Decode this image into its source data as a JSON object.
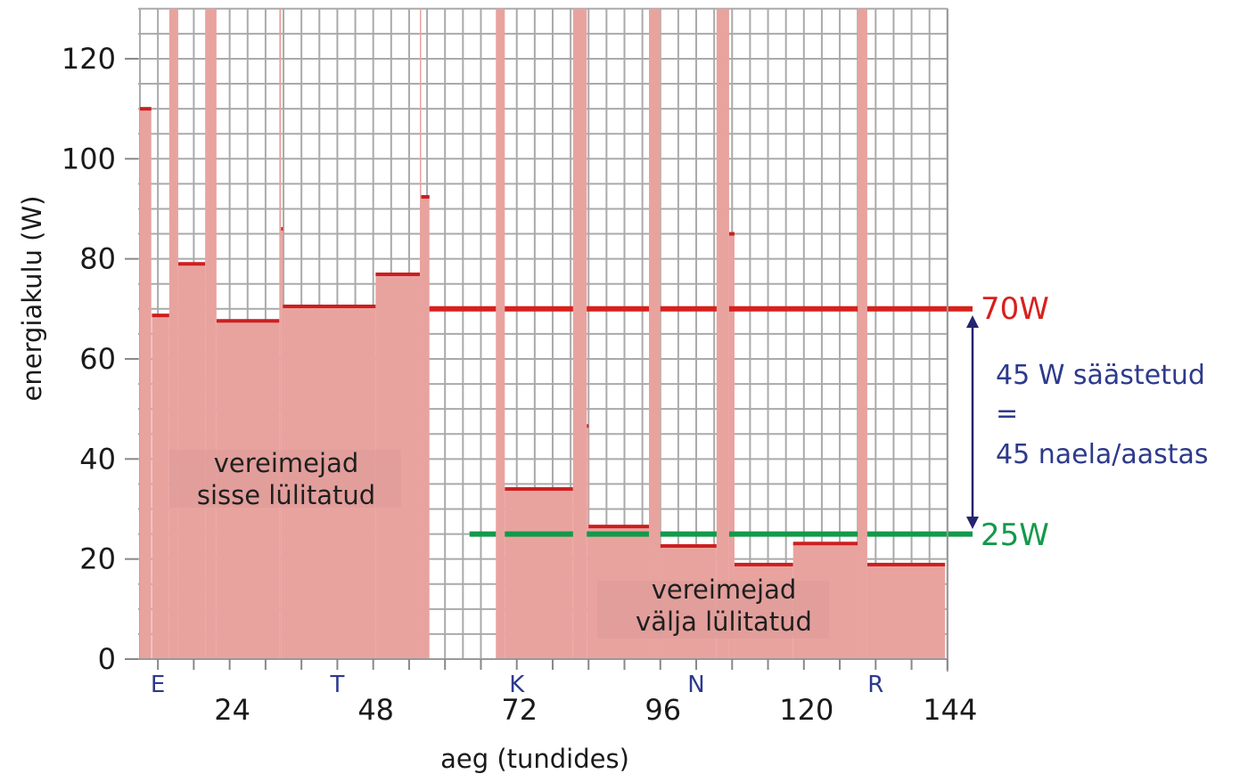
{
  "chart_data": {
    "type": "area",
    "xlabel": "aeg (tundides)",
    "ylabel": "energiakulu (W)",
    "xlim": [
      9,
      144
    ],
    "ylim": [
      0,
      130
    ],
    "x_ticks": [
      24,
      48,
      72,
      96,
      120,
      144
    ],
    "y_ticks": [
      0,
      20,
      40,
      60,
      80,
      100,
      120
    ],
    "grid": true,
    "day_labels": [
      {
        "label": "E",
        "x": 12
      },
      {
        "label": "T",
        "x": 42
      },
      {
        "label": "K",
        "x": 72
      },
      {
        "label": "N",
        "x": 102
      },
      {
        "label": "R",
        "x": 132
      }
    ],
    "series": [
      {
        "note": "step power consumption; null value = spike exceeding the axis top",
        "segments": [
          [
            9.0,
            10.9,
            110
          ],
          [
            11.0,
            13.9,
            68.7
          ],
          [
            13.9,
            15.4,
            null
          ],
          [
            15.4,
            19.9,
            79
          ],
          [
            19.9,
            21.8,
            null
          ],
          [
            21.8,
            32.3,
            67.6
          ],
          [
            32.3,
            32.6,
            null
          ],
          [
            32.6,
            32.9,
            86
          ],
          [
            32.9,
            48.4,
            70.5
          ],
          [
            48.4,
            55.8,
            76.9
          ],
          [
            55.8,
            56.0,
            null
          ],
          [
            56.0,
            57.4,
            92.4
          ],
          [
            68.5,
            70.0,
            null
          ],
          [
            70.0,
            81.4,
            34
          ],
          [
            81.4,
            83.7,
            null
          ],
          [
            83.7,
            84.0,
            46.6
          ],
          [
            84.0,
            94.1,
            26.5
          ],
          [
            94.1,
            96.0,
            null
          ],
          [
            96.0,
            105.4,
            22.6
          ],
          [
            105.4,
            107.5,
            null
          ],
          [
            107.5,
            108.4,
            85
          ],
          [
            108.4,
            118.2,
            18.9
          ],
          [
            118.2,
            129.0,
            23.1
          ],
          [
            129.0,
            130.6,
            null
          ],
          [
            130.6,
            143.6,
            18.9
          ]
        ]
      }
    ],
    "reference_lines": [
      {
        "label": "70W",
        "value": 70,
        "from": 57.4,
        "color": "#d8201c"
      },
      {
        "label": "25W",
        "value": 25,
        "from": 64.1,
        "color": "#13994a"
      }
    ],
    "annotations": {
      "on_line1": "vereimejad",
      "on_line2": "sisse lülitatud",
      "off_line1": "vereimejad",
      "off_line2": "välja lülitatud",
      "saving_line1": "45 W säästetud",
      "saving_line2": "=",
      "saving_line3": "45 naela/aastas"
    },
    "colors": {
      "fill": "#e9a39f",
      "step_line": "#cc1f1f",
      "grid": "#aaaaaa",
      "arrow": "#242470",
      "annotation_blue": "#2d3a8c"
    }
  }
}
